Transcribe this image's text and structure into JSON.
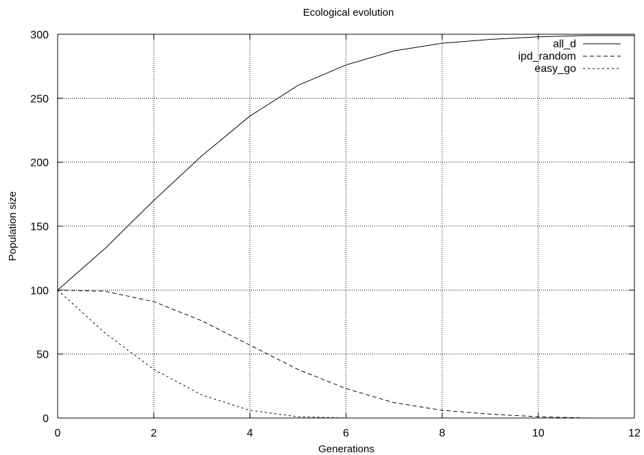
{
  "chart_data": {
    "type": "line",
    "title": "Ecological evolution",
    "xlabel": "Generations",
    "ylabel": "Population size",
    "xlim": [
      0,
      12
    ],
    "ylim": [
      0,
      300
    ],
    "x_ticks": [
      "0",
      "2",
      "4",
      "6",
      "8",
      "10",
      "12"
    ],
    "y_ticks": [
      "0",
      "50",
      "100",
      "150",
      "200",
      "250",
      "300"
    ],
    "grid": true,
    "legend_position": "top-right",
    "x": [
      0,
      1,
      2,
      3,
      4,
      5,
      6,
      7,
      8,
      9,
      10,
      11,
      12
    ],
    "series": [
      {
        "name": "all_d",
        "style": "solid",
        "values": [
          100,
          133,
          170,
          205,
          236,
          260,
          276,
          287,
          293,
          296,
          298,
          299,
          299
        ]
      },
      {
        "name": "ipd_random",
        "style": "dashed",
        "values": [
          100,
          99,
          91,
          76,
          57,
          38,
          23,
          12,
          6,
          3,
          1,
          0,
          0
        ]
      },
      {
        "name": "easy_go",
        "style": "dotted",
        "values": [
          100,
          66,
          38,
          18,
          6,
          1,
          0,
          0,
          0,
          0,
          0,
          0,
          0
        ]
      }
    ],
    "colors": {
      "line": "#000000",
      "grid": "#000000",
      "background": "#ffffff"
    }
  }
}
